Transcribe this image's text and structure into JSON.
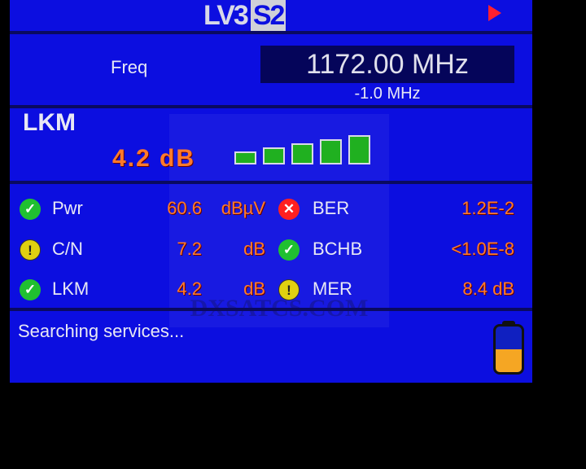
{
  "header": {
    "logo": "LV3",
    "logo_badge": "S2",
    "play_icon": "play-icon"
  },
  "freq": {
    "label": "Freq",
    "value": "1172.00 MHz",
    "offset": "-1.0 MHz"
  },
  "lkm": {
    "title": "LKM",
    "value": "4.2 dB",
    "bars": 5,
    "bars_lit": 5
  },
  "metrics": [
    {
      "status": "ok",
      "label": "Pwr",
      "value": "60.6",
      "unit": "dBµV"
    },
    {
      "status": "warn",
      "label": "C/N",
      "value": "7.2",
      "unit": "dB"
    },
    {
      "status": "ok",
      "label": "LKM",
      "value": "4.2",
      "unit": "dB"
    },
    {
      "status": "err",
      "label": "BER",
      "value": "1.2E-2"
    },
    {
      "status": "ok",
      "label": "BCHB",
      "value": "<1.0E-8"
    },
    {
      "status": "warn",
      "label": "MER",
      "value": "8.4 dB"
    }
  ],
  "status": {
    "text": "Searching services...",
    "battery_level": 0.5
  },
  "watermark": "DXSATCS.COM",
  "colors": {
    "background": "#0c0ee0",
    "value": "#ff7a2a",
    "ok": "#20c030",
    "warn": "#e0d010",
    "err": "#ff2020"
  }
}
